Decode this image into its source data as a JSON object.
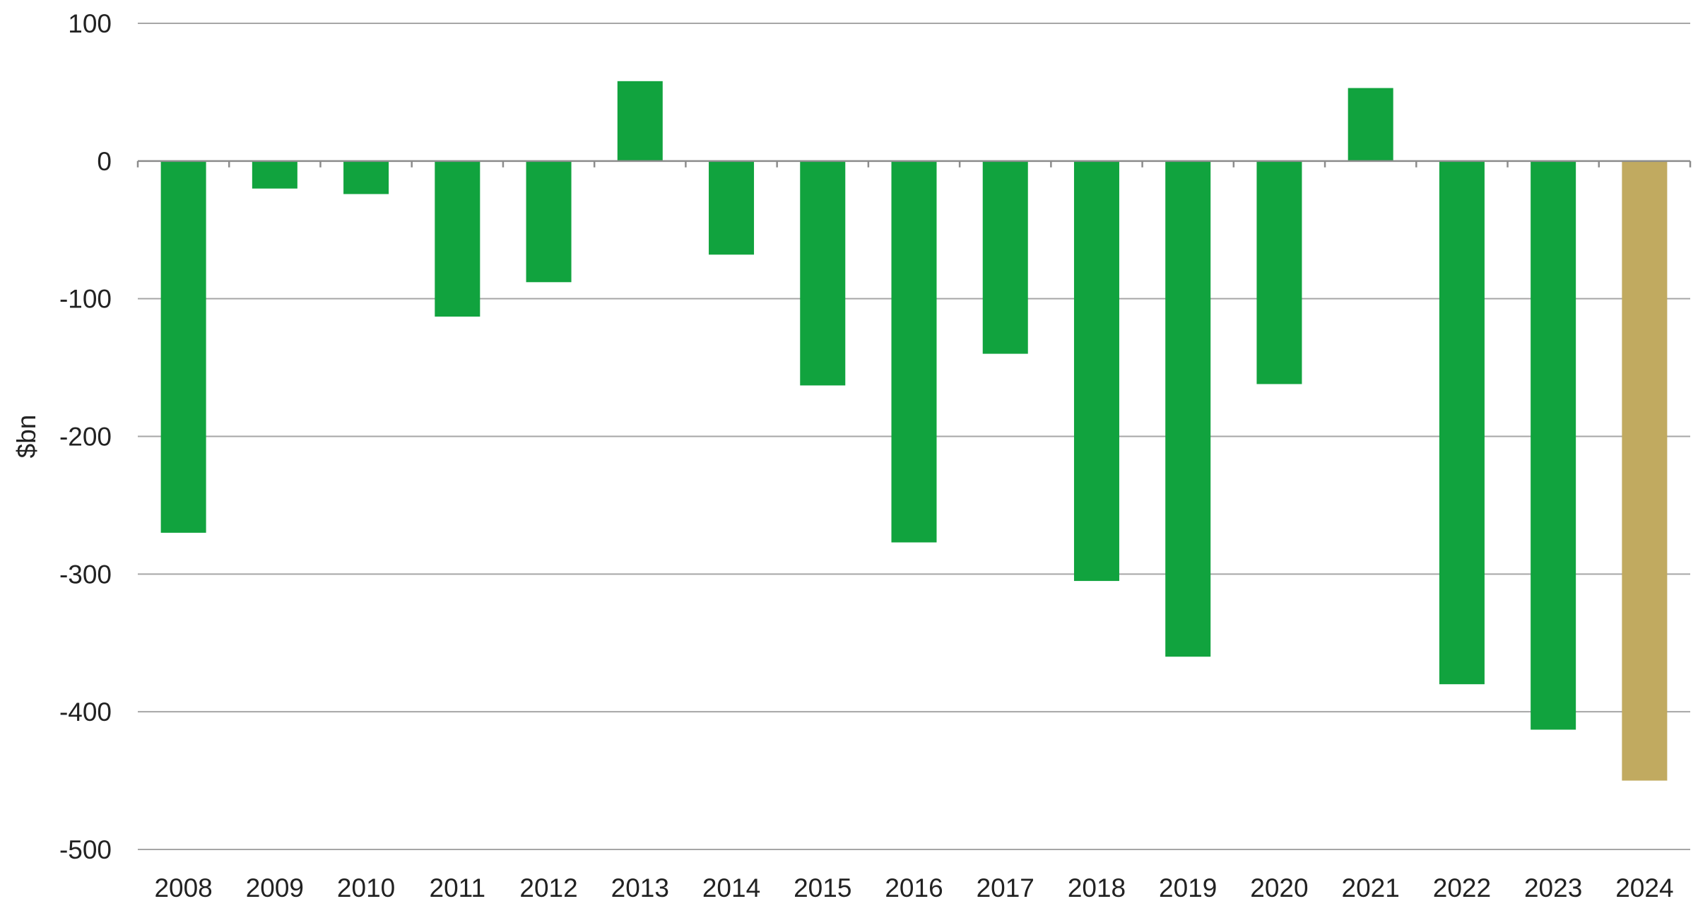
{
  "chart_data": {
    "type": "bar",
    "title": "",
    "xlabel": "",
    "ylabel": "$bn",
    "ylim": [
      -500,
      100
    ],
    "yticks": [
      100,
      0,
      -100,
      -200,
      -300,
      -400,
      -500
    ],
    "grid": true,
    "legend": "none",
    "categories": [
      "2008",
      "2009",
      "2010",
      "2011",
      "2012",
      "2013",
      "2014",
      "2015",
      "2016",
      "2017",
      "2018",
      "2019",
      "2020",
      "2021",
      "2022",
      "2023",
      "2024"
    ],
    "values": [
      -270,
      -20,
      -24,
      -113,
      -88,
      58,
      -68,
      -163,
      -277,
      -140,
      -305,
      -360,
      -162,
      53,
      -380,
      -413,
      -450
    ],
    "colors": {
      "default": "#11a33e",
      "highlight": "#c1aa60",
      "highlight_index": 16
    }
  }
}
